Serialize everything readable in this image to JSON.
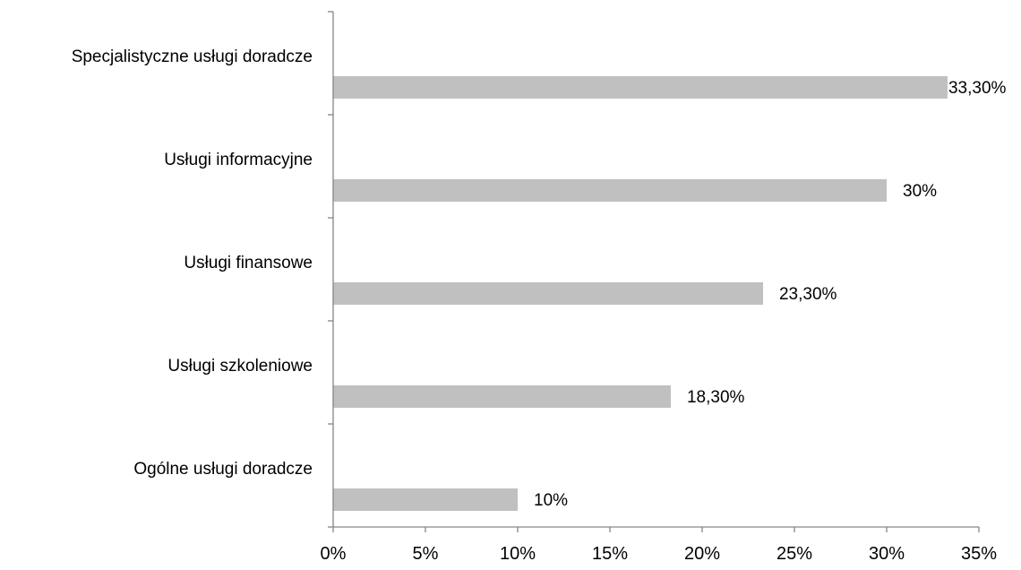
{
  "chart_data": {
    "type": "bar",
    "orientation": "horizontal",
    "categories": [
      "Specjalistyczne usługi doradcze",
      "Usługi informacyjne",
      "Usługi finansowe",
      "Usługi szkoleniowe",
      "Ogólne usługi doradcze"
    ],
    "values": [
      33.3,
      30,
      23.3,
      18.3,
      10
    ],
    "value_labels": [
      "33,30%",
      "30%",
      "23,30%",
      "18,30%",
      "10%"
    ],
    "xlim": [
      0,
      35
    ],
    "x_ticks": [
      0,
      5,
      10,
      15,
      20,
      25,
      30,
      35
    ],
    "x_tick_labels": [
      "0%",
      "5%",
      "10%",
      "15%",
      "20%",
      "25%",
      "30%",
      "35%"
    ],
    "title": "",
    "xlabel": "",
    "ylabel": "",
    "grid": false,
    "legend": "none",
    "bar_color": "#c0c0c0",
    "axis_color": "#868686"
  }
}
